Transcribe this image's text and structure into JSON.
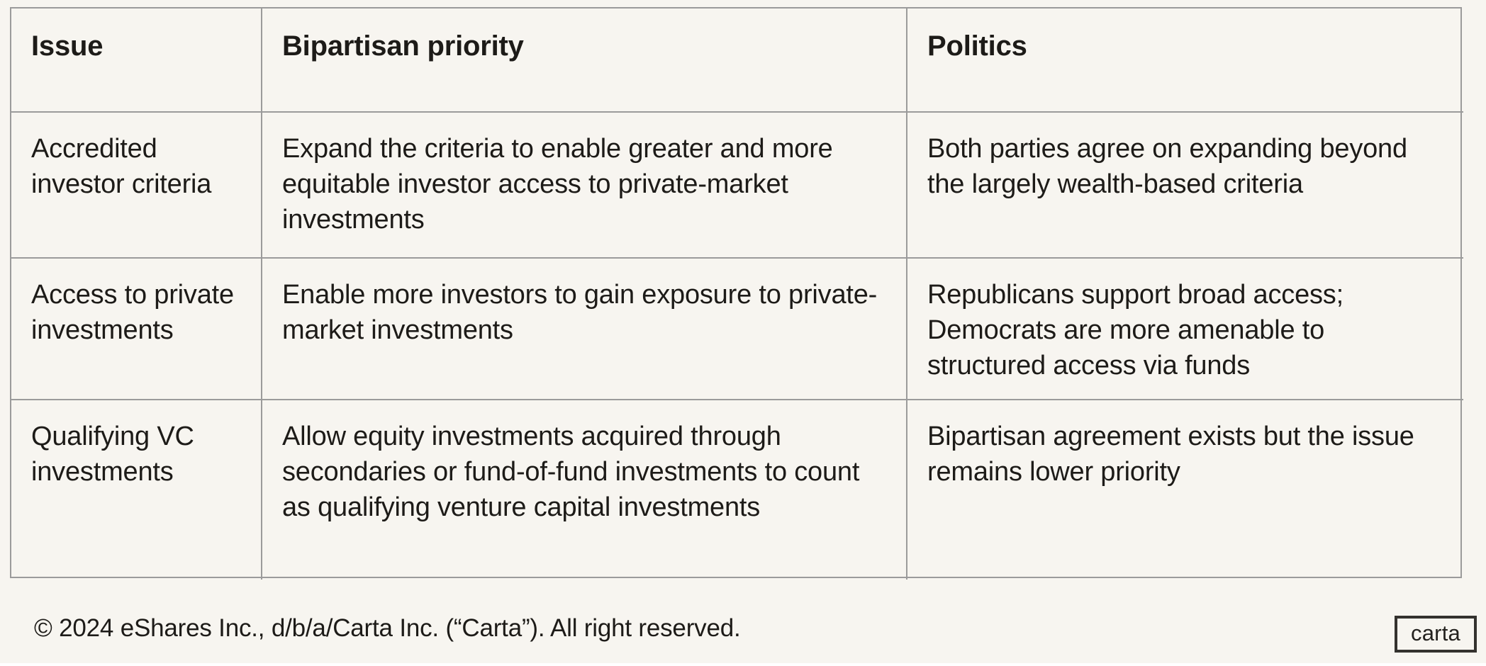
{
  "page": {
    "background": "#f7f5f0",
    "text_color": "#1d1b18",
    "border_color": "#9b9b9b"
  },
  "table": {
    "columns": [
      {
        "label": "Issue"
      },
      {
        "label": "Bipartisan priority"
      },
      {
        "label": "Politics"
      }
    ],
    "rows": [
      {
        "issue": "Accredited investor criteria",
        "priority": "Expand the criteria to enable greater and more equitable investor access to private-market investments",
        "politics": "Both parties agree on expanding beyond the largely wealth-based criteria"
      },
      {
        "issue": "Access to private investments",
        "priority": "Enable more investors to gain exposure to private-market investments",
        "politics": "Republicans support broad access; Democrats are more amenable to structured access via funds"
      },
      {
        "issue": "Qualifying VC investments",
        "priority": "Allow equity investments acquired through secondaries or fund-of-fund investments to count as qualifying venture capital investments",
        "politics": "Bipartisan agreement exists but the issue remains lower priority"
      }
    ]
  },
  "footer": {
    "copyright": "© 2024 eShares Inc., d/b/a/Carta Inc. (“Carta”). All right reserved.",
    "logo_text": "carta"
  }
}
